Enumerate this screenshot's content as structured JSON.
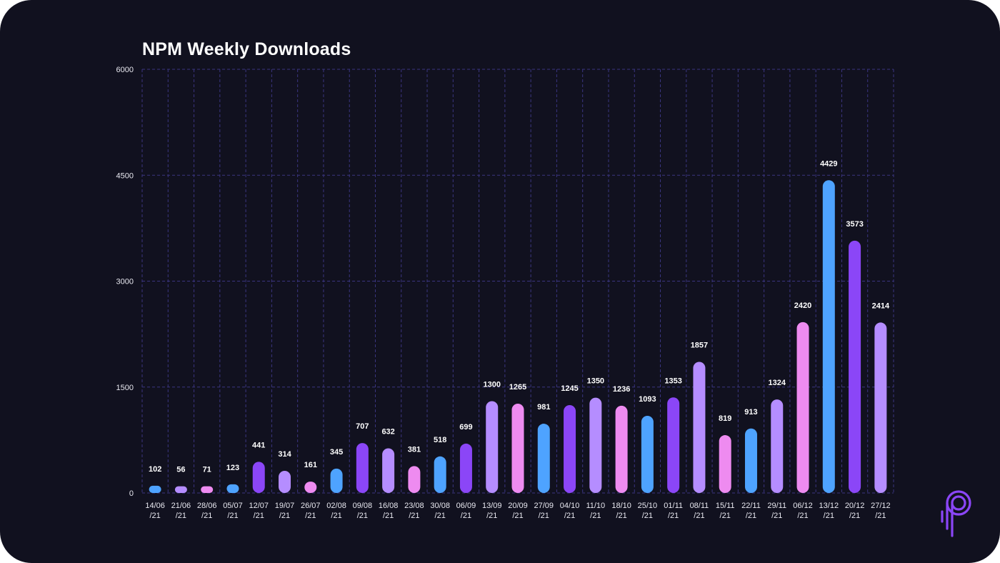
{
  "chart_data": {
    "type": "bar",
    "title": "NPM Weekly Downloads",
    "xlabel": "",
    "ylabel": "",
    "ylim": [
      0,
      6000
    ],
    "y_ticks": [
      0,
      1500,
      3000,
      4500,
      6000
    ],
    "grid": true,
    "categories": [
      [
        "14/06",
        "/21"
      ],
      [
        "21/06",
        "/21"
      ],
      [
        "28/06",
        "/21"
      ],
      [
        "05/07",
        "/21"
      ],
      [
        "12/07",
        "/21"
      ],
      [
        "19/07",
        "/21"
      ],
      [
        "26/07",
        "/21"
      ],
      [
        "02/08",
        "/21"
      ],
      [
        "09/08",
        "/21"
      ],
      [
        "16/08",
        "/21"
      ],
      [
        "23/08",
        "/21"
      ],
      [
        "30/08",
        "/21"
      ],
      [
        "06/09",
        "/21"
      ],
      [
        "13/09",
        "/21"
      ],
      [
        "20/09",
        "/21"
      ],
      [
        "27/09",
        "/21"
      ],
      [
        "04/10",
        "/21"
      ],
      [
        "11/10",
        "/21"
      ],
      [
        "18/10",
        "/21"
      ],
      [
        "25/10",
        "/21"
      ],
      [
        "01/11",
        "/21"
      ],
      [
        "08/11",
        "/21"
      ],
      [
        "15/11",
        "/21"
      ],
      [
        "22/11",
        "/21"
      ],
      [
        "29/11",
        "/21"
      ],
      [
        "06/12",
        "/21"
      ],
      [
        "13/12",
        "/21"
      ],
      [
        "20/12",
        "/21"
      ],
      [
        "27/12",
        "/21"
      ]
    ],
    "values": [
      102,
      56,
      71,
      123,
      441,
      314,
      161,
      345,
      707,
      632,
      381,
      518,
      699,
      1300,
      1265,
      981,
      1245,
      1350,
      1236,
      1093,
      1353,
      1857,
      819,
      913,
      1324,
      2420,
      4429,
      3573,
      2414
    ],
    "bar_colors": [
      "#4ea3ff",
      "#b58dff",
      "#ee8bf0",
      "#4ea3ff",
      "#8b46f7",
      "#b58dff",
      "#ee8bf0",
      "#4ea3ff",
      "#8b46f7",
      "#b58dff",
      "#ee8bf0",
      "#4ea3ff",
      "#8b46f7",
      "#b58dff",
      "#ee8bf0",
      "#4ea3ff",
      "#8b46f7",
      "#b58dff",
      "#ee8bf0",
      "#4ea3ff",
      "#8b46f7",
      "#b58dff",
      "#ee8bf0",
      "#4ea3ff",
      "#b58dff",
      "#ee8bf0",
      "#4ea3ff",
      "#8b46f7",
      "#b58dff"
    ]
  },
  "theme": {
    "background": "#11111f",
    "grid_color": "#3a3580",
    "text_color": "#ffffff",
    "axis_label_color": "#e8e8f0",
    "logo_color": "#8b46f7"
  },
  "logo": {
    "icon": "brand-logo-icon"
  }
}
